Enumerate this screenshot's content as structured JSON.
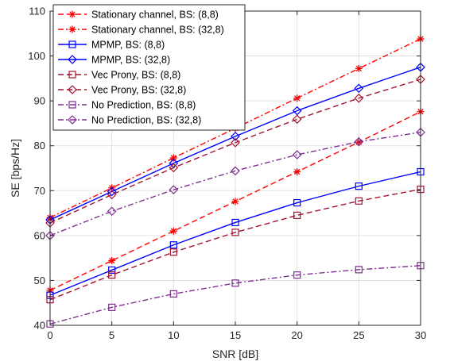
{
  "chart_data": {
    "type": "line",
    "xlabel": "SNR [dB]",
    "ylabel": "SE [bps/Hz]",
    "xlim": [
      0,
      30
    ],
    "ylim": [
      40,
      110
    ],
    "xticks": [
      0,
      5,
      10,
      15,
      20,
      25,
      30
    ],
    "yticks": [
      40,
      50,
      60,
      70,
      80,
      90,
      100,
      110
    ],
    "grid": true,
    "legend_position": "top-left",
    "x": [
      0,
      5,
      10,
      15,
      20,
      25,
      30
    ],
    "series": [
      {
        "name": "Stationary channel, BS: (8,8)",
        "color": "#ff0000",
        "dash": "dash",
        "marker": "asterisk",
        "values": [
          47.8,
          54.4,
          61.0,
          67.6,
          74.2,
          80.8,
          87.6
        ]
      },
      {
        "name": "Stationary channel, BS: (32,8)",
        "color": "#ff0000",
        "dash": "dashdot",
        "marker": "asterisk",
        "values": [
          64.0,
          70.6,
          77.3,
          83.9,
          90.6,
          97.2,
          103.8
        ]
      },
      {
        "name": "MPMP, BS: (8,8)",
        "color": "#0000ff",
        "dash": "solid",
        "marker": "square",
        "values": [
          46.7,
          52.3,
          57.9,
          62.9,
          67.3,
          71.0,
          74.2
        ]
      },
      {
        "name": "MPMP, BS: (32,8)",
        "color": "#0000ff",
        "dash": "solid",
        "marker": "diamond",
        "values": [
          63.5,
          69.8,
          76.1,
          82.1,
          87.8,
          92.8,
          97.5
        ]
      },
      {
        "name": "Vec Prony, BS: (8,8)",
        "color": "#a2142f",
        "dash": "dash",
        "marker": "square",
        "values": [
          45.7,
          51.2,
          56.3,
          60.7,
          64.5,
          67.7,
          70.3
        ]
      },
      {
        "name": "Vec Prony, BS: (32,8)",
        "color": "#a2142f",
        "dash": "dash",
        "marker": "diamond",
        "values": [
          62.8,
          69.1,
          75.1,
          80.7,
          85.9,
          90.6,
          94.8
        ]
      },
      {
        "name": "No Prediction, BS: (8,8)",
        "color": "#7e2f8e",
        "dash": "dashdot",
        "marker": "square",
        "values": [
          40.3,
          44.0,
          47.0,
          49.4,
          51.2,
          52.4,
          53.3
        ]
      },
      {
        "name": "No Prediction, BS: (32,8)",
        "color": "#7e2f8e",
        "dash": "dashdot",
        "marker": "diamond",
        "values": [
          60.0,
          65.4,
          70.2,
          74.4,
          78.0,
          80.9,
          83.0
        ]
      }
    ]
  }
}
